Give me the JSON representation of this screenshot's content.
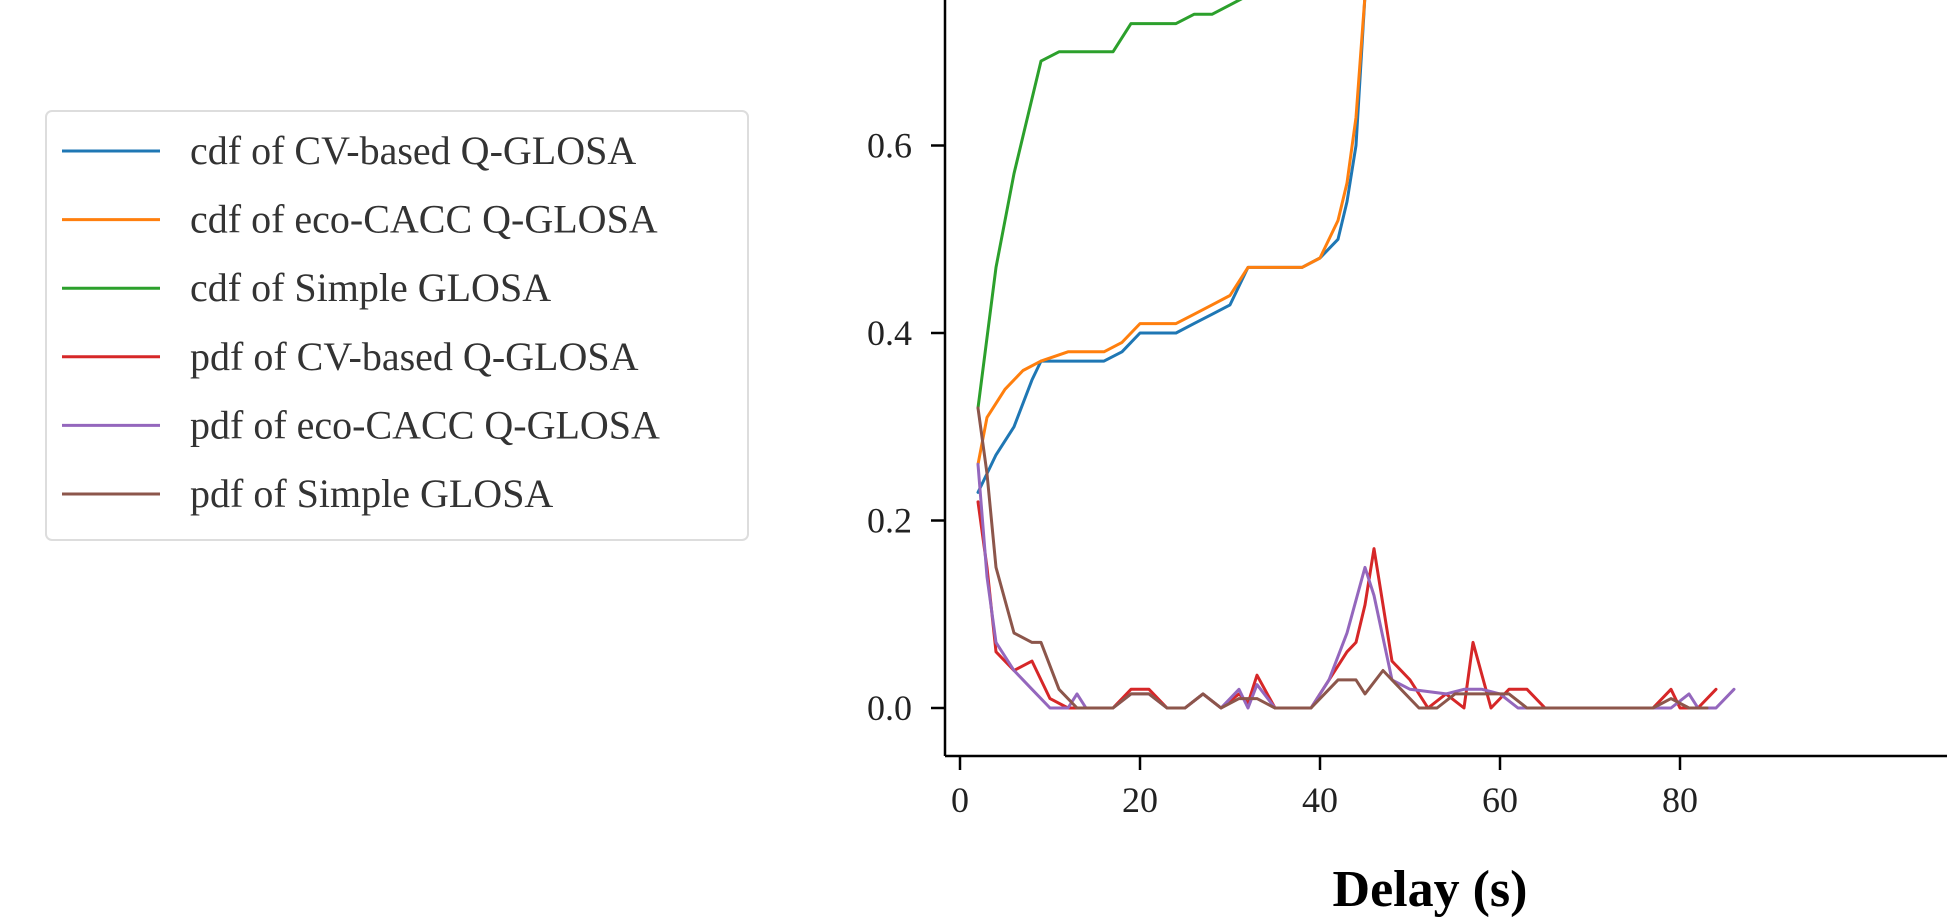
{
  "chart_data": {
    "type": "line",
    "xlabel": "Delay (s)",
    "ylabel": "",
    "xlim": [
      -2,
      86
    ],
    "ylim": [
      -0.05,
      0.76
    ],
    "xticks": [
      0,
      20,
      40,
      60,
      80
    ],
    "xtick_labels": [
      "0",
      "20",
      "40",
      "60",
      "80"
    ],
    "yticks": [
      0.0,
      0.2,
      0.4,
      0.6
    ],
    "ytick_labels": [
      "0.0",
      "0.2",
      "0.4",
      "0.6"
    ],
    "grid": false,
    "legend_position": "left",
    "series": [
      {
        "name": "cdf of CV-based Q-GLOSA",
        "color": "#1f77b4",
        "points": [
          [
            2,
            0.23
          ],
          [
            4,
            0.27
          ],
          [
            6,
            0.3
          ],
          [
            8,
            0.35
          ],
          [
            9,
            0.37
          ],
          [
            12,
            0.37
          ],
          [
            16,
            0.37
          ],
          [
            18,
            0.38
          ],
          [
            20,
            0.4
          ],
          [
            22,
            0.4
          ],
          [
            24,
            0.4
          ],
          [
            26,
            0.41
          ],
          [
            28,
            0.42
          ],
          [
            30,
            0.43
          ],
          [
            32,
            0.47
          ],
          [
            34,
            0.47
          ],
          [
            36,
            0.47
          ],
          [
            38,
            0.47
          ],
          [
            40,
            0.48
          ],
          [
            42,
            0.5
          ],
          [
            43,
            0.54
          ],
          [
            44,
            0.6
          ],
          [
            45,
            0.76
          ]
        ]
      },
      {
        "name": "cdf of eco-CACC Q-GLOSA",
        "color": "#ff7f0e",
        "points": [
          [
            2,
            0.26
          ],
          [
            3,
            0.31
          ],
          [
            5,
            0.34
          ],
          [
            7,
            0.36
          ],
          [
            9,
            0.37
          ],
          [
            12,
            0.38
          ],
          [
            16,
            0.38
          ],
          [
            18,
            0.39
          ],
          [
            20,
            0.41
          ],
          [
            24,
            0.41
          ],
          [
            26,
            0.42
          ],
          [
            28,
            0.43
          ],
          [
            30,
            0.44
          ],
          [
            32,
            0.47
          ],
          [
            38,
            0.47
          ],
          [
            40,
            0.48
          ],
          [
            42,
            0.52
          ],
          [
            43,
            0.56
          ],
          [
            44,
            0.63
          ],
          [
            45,
            0.76
          ]
        ]
      },
      {
        "name": "cdf of Simple GLOSA",
        "color": "#2ca02c",
        "points": [
          [
            2,
            0.32
          ],
          [
            4,
            0.47
          ],
          [
            6,
            0.57
          ],
          [
            9,
            0.69
          ],
          [
            11,
            0.7
          ],
          [
            15,
            0.7
          ],
          [
            17,
            0.7
          ],
          [
            19,
            0.73
          ],
          [
            21,
            0.73
          ],
          [
            24,
            0.73
          ],
          [
            26,
            0.74
          ],
          [
            28,
            0.74
          ],
          [
            30,
            0.75
          ],
          [
            32,
            0.76
          ]
        ]
      },
      {
        "name": "pdf of CV-based Q-GLOSA",
        "color": "#d62728",
        "points": [
          [
            2,
            0.22
          ],
          [
            3,
            0.15
          ],
          [
            4,
            0.06
          ],
          [
            6,
            0.04
          ],
          [
            8,
            0.05
          ],
          [
            10,
            0.01
          ],
          [
            12,
            0.0
          ],
          [
            14,
            0.0
          ],
          [
            17,
            0.0
          ],
          [
            19,
            0.02
          ],
          [
            21,
            0.02
          ],
          [
            23,
            0.0
          ],
          [
            25,
            0.0
          ],
          [
            27,
            0.015
          ],
          [
            29,
            0.0
          ],
          [
            31,
            0.015
          ],
          [
            32,
            0.005
          ],
          [
            33,
            0.035
          ],
          [
            35,
            0.0
          ],
          [
            37,
            0.0
          ],
          [
            39,
            0.0
          ],
          [
            41,
            0.03
          ],
          [
            43,
            0.06
          ],
          [
            44,
            0.07
          ],
          [
            45,
            0.11
          ],
          [
            46,
            0.17
          ],
          [
            48,
            0.05
          ],
          [
            50,
            0.03
          ],
          [
            52,
            0.0
          ],
          [
            54,
            0.015
          ],
          [
            56,
            0.0
          ],
          [
            57,
            0.07
          ],
          [
            59,
            0.0
          ],
          [
            61,
            0.02
          ],
          [
            63,
            0.02
          ],
          [
            65,
            0.0
          ],
          [
            77,
            0.0
          ],
          [
            79,
            0.02
          ],
          [
            80,
            0.0
          ],
          [
            82,
            0.0
          ],
          [
            84,
            0.02
          ]
        ]
      },
      {
        "name": "pdf of eco-CACC Q-GLOSA",
        "color": "#9467bd",
        "points": [
          [
            2,
            0.26
          ],
          [
            3,
            0.14
          ],
          [
            4,
            0.07
          ],
          [
            6,
            0.04
          ],
          [
            8,
            0.02
          ],
          [
            10,
            0.0
          ],
          [
            12,
            0.0
          ],
          [
            13,
            0.015
          ],
          [
            14,
            0.0
          ],
          [
            17,
            0.0
          ],
          [
            19,
            0.015
          ],
          [
            21,
            0.015
          ],
          [
            23,
            0.0
          ],
          [
            25,
            0.0
          ],
          [
            27,
            0.015
          ],
          [
            29,
            0.0
          ],
          [
            31,
            0.02
          ],
          [
            32,
            0.0
          ],
          [
            33,
            0.025
          ],
          [
            35,
            0.0
          ],
          [
            39,
            0.0
          ],
          [
            41,
            0.03
          ],
          [
            43,
            0.08
          ],
          [
            45,
            0.15
          ],
          [
            46,
            0.12
          ],
          [
            48,
            0.03
          ],
          [
            50,
            0.02
          ],
          [
            54,
            0.015
          ],
          [
            56,
            0.02
          ],
          [
            58,
            0.02
          ],
          [
            60,
            0.015
          ],
          [
            62,
            0.0
          ],
          [
            77,
            0.0
          ],
          [
            79,
            0.0
          ],
          [
            81,
            0.015
          ],
          [
            82,
            0.0
          ],
          [
            84,
            0.0
          ],
          [
            86,
            0.02
          ]
        ]
      },
      {
        "name": "pdf of Simple GLOSA",
        "color": "#8c564b",
        "points": [
          [
            2,
            0.32
          ],
          [
            3,
            0.25
          ],
          [
            4,
            0.15
          ],
          [
            6,
            0.08
          ],
          [
            8,
            0.07
          ],
          [
            9,
            0.07
          ],
          [
            11,
            0.02
          ],
          [
            13,
            0.0
          ],
          [
            17,
            0.0
          ],
          [
            19,
            0.015
          ],
          [
            21,
            0.015
          ],
          [
            23,
            0.0
          ],
          [
            25,
            0.0
          ],
          [
            27,
            0.015
          ],
          [
            29,
            0.0
          ],
          [
            31,
            0.01
          ],
          [
            33,
            0.01
          ],
          [
            35,
            0.0
          ],
          [
            39,
            0.0
          ],
          [
            42,
            0.03
          ],
          [
            44,
            0.03
          ],
          [
            45,
            0.015
          ],
          [
            47,
            0.04
          ],
          [
            49,
            0.02
          ],
          [
            51,
            0.0
          ],
          [
            53,
            0.0
          ],
          [
            55,
            0.015
          ],
          [
            57,
            0.015
          ],
          [
            59,
            0.015
          ],
          [
            61,
            0.015
          ],
          [
            63,
            0.0
          ],
          [
            77,
            0.0
          ],
          [
            79,
            0.01
          ],
          [
            81,
            0.0
          ],
          [
            83,
            0.0
          ]
        ]
      }
    ]
  }
}
